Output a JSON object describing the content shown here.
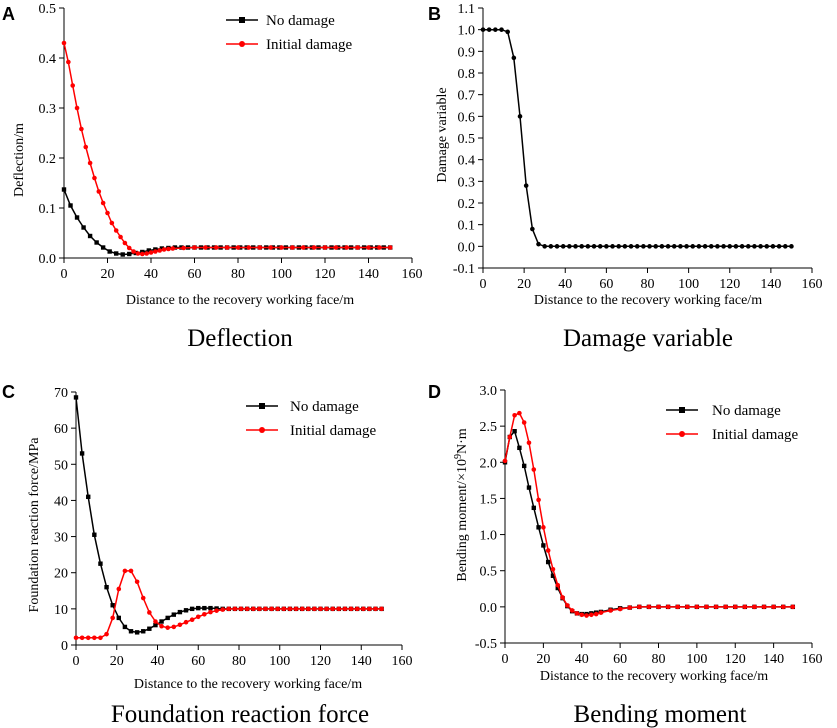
{
  "figure_colors": {
    "no_damage": "#000000",
    "initial_damage": "#ff0000",
    "axis": "#000000"
  },
  "chart_data": [
    {
      "panel": "A",
      "type": "line",
      "caption": "Deflection",
      "xlabel": "Distance to the recovery working face/m",
      "ylabel": "Deflection/m",
      "xlim": [
        0,
        160
      ],
      "ylim": [
        0,
        0.5
      ],
      "xticks": [
        0,
        20,
        40,
        60,
        80,
        100,
        120,
        140,
        160
      ],
      "yticks": [
        0.0,
        0.1,
        0.2,
        0.3,
        0.4,
        0.5
      ],
      "xtick_labels": [
        "0",
        "20",
        "40",
        "60",
        "80",
        "100",
        "120",
        "140",
        "160"
      ],
      "ytick_labels": [
        "0.0",
        "0.1",
        "0.2",
        "0.3",
        "0.4",
        "0.5"
      ],
      "legend_position": "top-right",
      "series": [
        {
          "name": "No damage",
          "color": "#000000",
          "marker": "square",
          "x": [
            0,
            3,
            6,
            9,
            12,
            15,
            18,
            21,
            24,
            27,
            30,
            33,
            36,
            39,
            42,
            45,
            48,
            51,
            54,
            57,
            60,
            63,
            66,
            69,
            72,
            75,
            78,
            81,
            84,
            87,
            90,
            93,
            96,
            99,
            102,
            105,
            108,
            111,
            114,
            117,
            120,
            123,
            126,
            129,
            132,
            135,
            138,
            141,
            144,
            147,
            150
          ],
          "y": [
            0.137,
            0.105,
            0.081,
            0.061,
            0.044,
            0.031,
            0.021,
            0.013,
            0.009,
            0.007,
            0.008,
            0.01,
            0.012,
            0.015,
            0.017,
            0.019,
            0.02,
            0.021,
            0.021,
            0.021,
            0.021,
            0.021,
            0.021,
            0.021,
            0.021,
            0.021,
            0.021,
            0.021,
            0.021,
            0.021,
            0.021,
            0.021,
            0.021,
            0.021,
            0.021,
            0.021,
            0.021,
            0.021,
            0.021,
            0.021,
            0.021,
            0.021,
            0.021,
            0.021,
            0.021,
            0.021,
            0.021,
            0.021,
            0.021,
            0.021,
            0.021
          ]
        },
        {
          "name": "Initial damage",
          "color": "#ff0000",
          "marker": "circle",
          "x": [
            0,
            2,
            4,
            6,
            8,
            10,
            12,
            14,
            16,
            18,
            20,
            22,
            24,
            26,
            28,
            30,
            32,
            34,
            36,
            38,
            40,
            42,
            44,
            46,
            48,
            50,
            55,
            60,
            65,
            70,
            75,
            80,
            85,
            90,
            95,
            100,
            105,
            110,
            115,
            120,
            125,
            130,
            135,
            140,
            145,
            150
          ],
          "y": [
            0.43,
            0.392,
            0.345,
            0.3,
            0.258,
            0.222,
            0.19,
            0.16,
            0.133,
            0.11,
            0.09,
            0.07,
            0.055,
            0.042,
            0.03,
            0.02,
            0.013,
            0.009,
            0.008,
            0.009,
            0.011,
            0.013,
            0.015,
            0.017,
            0.018,
            0.019,
            0.02,
            0.021,
            0.021,
            0.021,
            0.021,
            0.021,
            0.021,
            0.021,
            0.021,
            0.021,
            0.021,
            0.021,
            0.021,
            0.021,
            0.021,
            0.021,
            0.021,
            0.021,
            0.021,
            0.021
          ]
        }
      ]
    },
    {
      "panel": "B",
      "type": "line",
      "caption": "Damage variable",
      "xlabel": "Distance to the recovery working face/m",
      "ylabel": "Damage variable",
      "xlim": [
        0,
        160
      ],
      "ylim": [
        -0.1,
        1.1
      ],
      "xticks": [
        0,
        20,
        40,
        60,
        80,
        100,
        120,
        140,
        160
      ],
      "yticks": [
        -0.1,
        0.0,
        0.1,
        0.2,
        0.3,
        0.4,
        0.5,
        0.6,
        0.7,
        0.8,
        0.9,
        1.0,
        1.1
      ],
      "xtick_labels": [
        "0",
        "20",
        "40",
        "60",
        "80",
        "100",
        "120",
        "140",
        "160"
      ],
      "ytick_labels": [
        "-0.1",
        "0.0",
        "0.1",
        "0.2",
        "0.3",
        "0.4",
        "0.5",
        "0.6",
        "0.7",
        "0.8",
        "0.9",
        "1.0",
        "1.1"
      ],
      "legend_position": "none",
      "series": [
        {
          "name": "Damage variable",
          "color": "#000000",
          "marker": "circle",
          "x": [
            0,
            3,
            6,
            9,
            12,
            15,
            18,
            21,
            24,
            27,
            30,
            33,
            36,
            39,
            42,
            45,
            48,
            51,
            54,
            57,
            60,
            63,
            66,
            69,
            72,
            75,
            78,
            81,
            84,
            87,
            90,
            93,
            96,
            99,
            102,
            105,
            108,
            111,
            114,
            117,
            120,
            123,
            126,
            129,
            132,
            135,
            138,
            141,
            144,
            147,
            150
          ],
          "y": [
            1.0,
            1.0,
            1.0,
            1.0,
            0.99,
            0.87,
            0.6,
            0.28,
            0.08,
            0.01,
            0.0,
            0.0,
            0.0,
            0.0,
            0.0,
            0.0,
            0.0,
            0.0,
            0.0,
            0.0,
            0.0,
            0.0,
            0.0,
            0.0,
            0.0,
            0.0,
            0.0,
            0.0,
            0.0,
            0.0,
            0.0,
            0.0,
            0.0,
            0.0,
            0.0,
            0.0,
            0.0,
            0.0,
            0.0,
            0.0,
            0.0,
            0.0,
            0.0,
            0.0,
            0.0,
            0.0,
            0.0,
            0.0,
            0.0,
            0.0,
            0.0
          ]
        }
      ]
    },
    {
      "panel": "C",
      "type": "line",
      "caption": "Foundation reaction force",
      "xlabel": "Distance to the recovery working face/m",
      "ylabel": "Foundation reaction force/MPa",
      "xlim": [
        0,
        160
      ],
      "ylim": [
        0,
        70
      ],
      "xticks": [
        0,
        20,
        40,
        60,
        80,
        100,
        120,
        140,
        160
      ],
      "yticks": [
        0,
        10,
        20,
        30,
        40,
        50,
        60,
        70
      ],
      "xtick_labels": [
        "0",
        "20",
        "40",
        "60",
        "80",
        "100",
        "120",
        "140",
        "160"
      ],
      "ytick_labels": [
        "0",
        "10",
        "20",
        "30",
        "40",
        "50",
        "60",
        "70"
      ],
      "legend_position": "top-right",
      "series": [
        {
          "name": "No damage",
          "color": "#000000",
          "marker": "square",
          "x": [
            0,
            3,
            6,
            9,
            12,
            15,
            18,
            21,
            24,
            27,
            30,
            33,
            36,
            39,
            42,
            45,
            48,
            51,
            54,
            57,
            60,
            63,
            66,
            69,
            72,
            75,
            78,
            81,
            84,
            87,
            90,
            93,
            96,
            99,
            102,
            105,
            108,
            111,
            114,
            117,
            120,
            123,
            126,
            129,
            132,
            135,
            138,
            141,
            144,
            147,
            150
          ],
          "y": [
            68.5,
            53,
            41,
            30.5,
            22.5,
            16,
            11,
            7.5,
            5,
            3.8,
            3.5,
            3.8,
            4.5,
            5.5,
            6.5,
            7.5,
            8.4,
            9.1,
            9.6,
            10.0,
            10.2,
            10.2,
            10.2,
            10.1,
            10.0,
            10.0,
            10.0,
            10.0,
            10.0,
            10.0,
            10.0,
            10.0,
            10.0,
            10.0,
            10.0,
            10.0,
            10.0,
            10.0,
            10.0,
            10.0,
            10.0,
            10.0,
            10.0,
            10.0,
            10.0,
            10.0,
            10.0,
            10.0,
            10.0,
            10.0,
            10.0
          ]
        },
        {
          "name": "Initial damage",
          "color": "#ff0000",
          "marker": "circle",
          "x": [
            0,
            3,
            6,
            9,
            12,
            15,
            18,
            21,
            24,
            27,
            30,
            33,
            36,
            39,
            42,
            45,
            48,
            51,
            54,
            57,
            60,
            63,
            66,
            69,
            72,
            75,
            78,
            81,
            84,
            87,
            90,
            93,
            96,
            99,
            102,
            105,
            108,
            111,
            114,
            117,
            120,
            123,
            126,
            129,
            132,
            135,
            138,
            141,
            144,
            147,
            150
          ],
          "y": [
            2.0,
            2.0,
            2.0,
            2.0,
            2.0,
            3.0,
            7.5,
            15.5,
            20.5,
            20.5,
            17.5,
            13.0,
            9.0,
            6.5,
            5.2,
            4.8,
            5.0,
            5.6,
            6.3,
            7.0,
            7.8,
            8.5,
            9.1,
            9.5,
            9.8,
            10.0,
            10.0,
            10.0,
            10.0,
            10.0,
            10.0,
            10.0,
            10.0,
            10.0,
            10.0,
            10.0,
            10.0,
            10.0,
            10.0,
            10.0,
            10.0,
            10.0,
            10.0,
            10.0,
            10.0,
            10.0,
            10.0,
            10.0,
            10.0,
            10.0,
            10.0
          ]
        }
      ]
    },
    {
      "panel": "D",
      "type": "line",
      "caption": "Bending moment",
      "xlabel": "Distance to the recovery working face/m",
      "ylabel_prefix": "Bending moment/×10",
      "ylabel_superscript": "9",
      "ylabel_suffix": "N·m",
      "xlim": [
        0,
        160
      ],
      "ylim": [
        -0.5,
        3.0
      ],
      "xticks": [
        0,
        20,
        40,
        60,
        80,
        100,
        120,
        140,
        160
      ],
      "yticks": [
        -0.5,
        0.0,
        0.5,
        1.0,
        1.5,
        2.0,
        2.5,
        3.0
      ],
      "xtick_labels": [
        "0",
        "20",
        "40",
        "60",
        "80",
        "100",
        "120",
        "140",
        "160"
      ],
      "ytick_labels": [
        "-0.5",
        "0.0",
        "0.5",
        "1.0",
        "1.5",
        "2.0",
        "2.5",
        "3.0"
      ],
      "legend_position": "top-right",
      "series": [
        {
          "name": "No damage",
          "color": "#000000",
          "marker": "square",
          "x": [
            0,
            2.5,
            5,
            7.5,
            10,
            12.5,
            15,
            17.5,
            20,
            22.5,
            25,
            27.5,
            30,
            32.5,
            35,
            37.5,
            40,
            42.5,
            45,
            47.5,
            50,
            55,
            60,
            65,
            70,
            75,
            80,
            85,
            90,
            95,
            100,
            105,
            110,
            115,
            120,
            125,
            130,
            135,
            140,
            145,
            150
          ],
          "y": [
            2.0,
            2.35,
            2.43,
            2.2,
            1.95,
            1.65,
            1.37,
            1.1,
            0.85,
            0.62,
            0.43,
            0.26,
            0.12,
            0.01,
            -0.06,
            -0.09,
            -0.1,
            -0.1,
            -0.09,
            -0.08,
            -0.07,
            -0.04,
            -0.02,
            -0.01,
            0.0,
            0.0,
            0.0,
            0.0,
            0.0,
            0.0,
            0.0,
            0.0,
            0.0,
            0.0,
            0.0,
            0.0,
            0.0,
            0.0,
            0.0,
            0.0,
            0.0
          ]
        },
        {
          "name": "Initial damage",
          "color": "#ff0000",
          "marker": "circle",
          "x": [
            0,
            2.5,
            5,
            7.5,
            10,
            12.5,
            15,
            17.5,
            20,
            22.5,
            25,
            27.5,
            30,
            32.5,
            35,
            37.5,
            40,
            42.5,
            45,
            47.5,
            50,
            55,
            60,
            65,
            70,
            75,
            80,
            85,
            90,
            95,
            100,
            105,
            110,
            115,
            120,
            125,
            130,
            135,
            140,
            145,
            150
          ],
          "y": [
            2.02,
            2.35,
            2.65,
            2.68,
            2.55,
            2.27,
            1.9,
            1.48,
            1.1,
            0.78,
            0.52,
            0.3,
            0.13,
            0.02,
            -0.05,
            -0.09,
            -0.11,
            -0.12,
            -0.11,
            -0.1,
            -0.08,
            -0.05,
            -0.03,
            -0.01,
            0.0,
            0.0,
            0.0,
            0.0,
            0.0,
            0.0,
            0.0,
            0.0,
            0.0,
            0.0,
            0.0,
            0.0,
            0.0,
            0.0,
            0.0,
            0.0,
            0.0
          ]
        }
      ]
    }
  ]
}
